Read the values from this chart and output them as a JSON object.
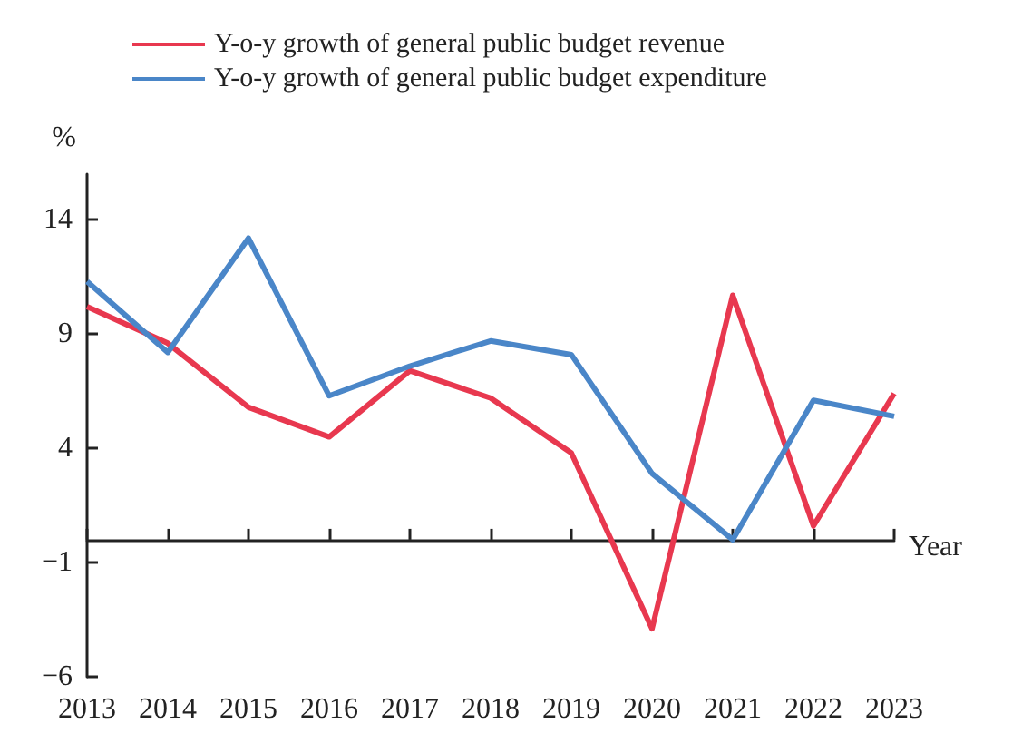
{
  "chart_data": {
    "type": "line",
    "xlabel": "Year",
    "ylabel": "%",
    "categories": [
      "2013",
      "2014",
      "2015",
      "2016",
      "2017",
      "2018",
      "2019",
      "2020",
      "2021",
      "2022",
      "2023"
    ],
    "series": [
      {
        "name": "Y-o-y growth of general public budget revenue",
        "color": "#e8384f",
        "values": [
          10.2,
          8.6,
          5.8,
          4.5,
          7.4,
          6.2,
          3.8,
          -3.9,
          10.7,
          0.6,
          6.4
        ]
      },
      {
        "name": "Y-o-y growth of general public budget expenditure",
        "color": "#4a86c8",
        "values": [
          11.3,
          8.2,
          13.2,
          6.3,
          7.6,
          8.7,
          8.1,
          2.9,
          0,
          6.1,
          5.4
        ]
      }
    ],
    "ylim": [
      -6,
      16
    ],
    "yticks": [
      14,
      9,
      4,
      -1,
      -6
    ],
    "grid": false,
    "legend": "top",
    "marker": "none",
    "line_style": "solid"
  }
}
